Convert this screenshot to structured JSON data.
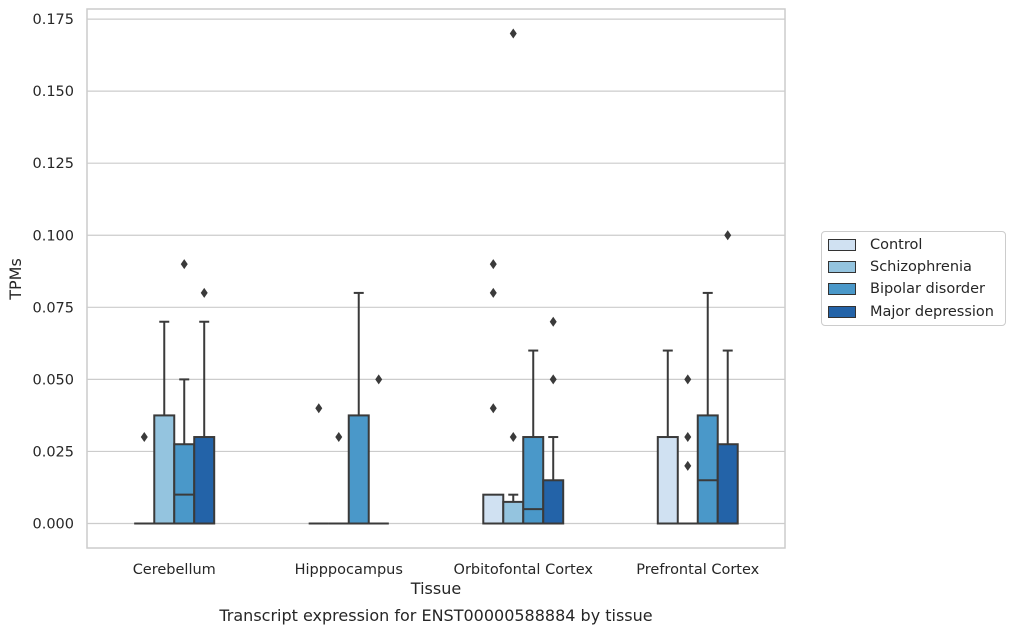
{
  "chart_data": {
    "type": "boxplot",
    "xlabel": "Tissue",
    "ylabel": "TPMs",
    "ylim": [
      -0.0085,
      0.1785
    ],
    "yticks": [
      0.0,
      0.025,
      0.05,
      0.075,
      0.1,
      0.125,
      0.15,
      0.175
    ],
    "ytick_labels": [
      "0.000",
      "0.025",
      "0.050",
      "0.075",
      "0.100",
      "0.125",
      "0.150",
      "0.175"
    ],
    "categories": [
      "Cerebellum",
      "Hipppocampus",
      "Orbitofontal Cortex",
      "Prefrontal Cortex"
    ],
    "grid": true,
    "legend_position": "right",
    "series": [
      {
        "name": "Control",
        "color": "#d0e1f2",
        "boxes": [
          {
            "q1": 0,
            "median": 0,
            "q3": 0,
            "whisker_low": 0,
            "whisker_high": 0,
            "fliers": [
              0.03
            ]
          },
          {
            "q1": 0,
            "median": 0,
            "q3": 0,
            "whisker_low": 0,
            "whisker_high": 0,
            "fliers": [
              0.04
            ]
          },
          {
            "q1": 0,
            "median": 0,
            "q3": 0.01,
            "whisker_low": 0,
            "whisker_high": 0.01,
            "fliers": [
              0.04,
              0.08,
              0.09
            ]
          },
          {
            "q1": 0,
            "median": 0,
            "q3": 0.03,
            "whisker_low": 0,
            "whisker_high": 0.06,
            "fliers": []
          }
        ]
      },
      {
        "name": "Schizophrenia",
        "color": "#94c4df",
        "boxes": [
          {
            "q1": 0,
            "median": 0,
            "q3": 0.0375,
            "whisker_low": 0,
            "whisker_high": 0.07,
            "fliers": []
          },
          {
            "q1": 0,
            "median": 0,
            "q3": 0,
            "whisker_low": 0,
            "whisker_high": 0,
            "fliers": [
              0.03
            ]
          },
          {
            "q1": 0,
            "median": 0,
            "q3": 0.0075,
            "whisker_low": 0,
            "whisker_high": 0.01,
            "fliers": [
              0.03,
              0.17
            ]
          },
          {
            "q1": 0,
            "median": 0,
            "q3": 0,
            "whisker_low": 0,
            "whisker_high": 0,
            "fliers": [
              0.02,
              0.03,
              0.05
            ]
          }
        ]
      },
      {
        "name": "Bipolar disorder",
        "color": "#4a98c9",
        "boxes": [
          {
            "q1": 0,
            "median": 0.01,
            "q3": 0.0275,
            "whisker_low": 0,
            "whisker_high": 0.05,
            "fliers": [
              0.09
            ]
          },
          {
            "q1": 0,
            "median": 0,
            "q3": 0.0375,
            "whisker_low": 0,
            "whisker_high": 0.08,
            "fliers": []
          },
          {
            "q1": 0,
            "median": 0.005,
            "q3": 0.03,
            "whisker_low": 0,
            "whisker_high": 0.06,
            "fliers": []
          },
          {
            "q1": 0,
            "median": 0.015,
            "q3": 0.0375,
            "whisker_low": 0,
            "whisker_high": 0.08,
            "fliers": []
          }
        ]
      },
      {
        "name": "Major depression",
        "color": "#2363a8",
        "boxes": [
          {
            "q1": 0,
            "median": 0,
            "q3": 0.03,
            "whisker_low": 0,
            "whisker_high": 0.07,
            "fliers": [
              0.08
            ]
          },
          {
            "q1": 0,
            "median": 0,
            "q3": 0,
            "whisker_low": 0,
            "whisker_high": 0,
            "fliers": [
              0.05
            ]
          },
          {
            "q1": 0,
            "median": 0,
            "q3": 0.015,
            "whisker_low": 0,
            "whisker_high": 0.03,
            "fliers": [
              0.05,
              0.07
            ]
          },
          {
            "q1": 0,
            "median": 0,
            "q3": 0.0275,
            "whisker_low": 0,
            "whisker_high": 0.06,
            "fliers": [
              0.1
            ]
          }
        ]
      }
    ]
  },
  "caption": "Transcript expression for ENST00000588884 by tissue"
}
